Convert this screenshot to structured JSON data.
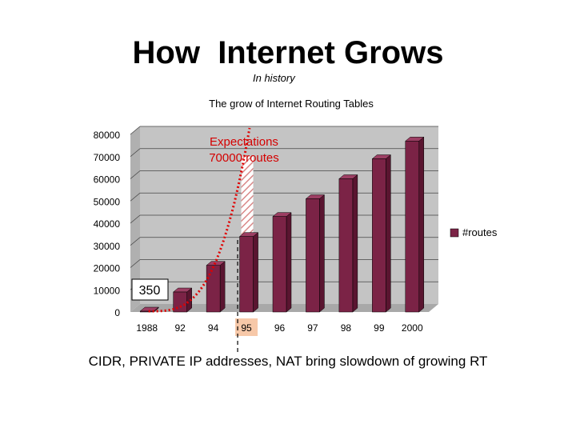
{
  "slide": {
    "title": "How  Internet Grows",
    "subtitle": "In history",
    "footer": "CIDR, PRIVATE IP addresses, NAT bring slowdown of growing RT"
  },
  "chart_data": {
    "type": "bar",
    "title": "The grow of Internet  Routing Tables",
    "categories": [
      "1988",
      "92",
      "94",
      "95",
      "96",
      "97",
      "98",
      "99",
      "2000"
    ],
    "series": [
      {
        "name": "#routes",
        "values": [
          350,
          9000,
          21000,
          34000,
          43000,
          51000,
          60000,
          69000,
          77000
        ]
      }
    ],
    "ylim": [
      0,
      80000
    ],
    "yticks": [
      0,
      10000,
      20000,
      30000,
      40000,
      50000,
      60000,
      70000,
      80000
    ],
    "grid": true,
    "legend_position": "right",
    "colors": {
      "bar": "#7b2346",
      "bar_top": "#9c3e63",
      "bar_side": "#5a1530",
      "plot_bg": "#c4c4c4",
      "expectation_curve": "#e00000",
      "highlight_tick": "#f7c8a8"
    },
    "highlight_category": "95",
    "annotations": {
      "expectation_label": "Expectations\n70000 routes",
      "expectation_value": 70000,
      "start_label": "350"
    }
  }
}
